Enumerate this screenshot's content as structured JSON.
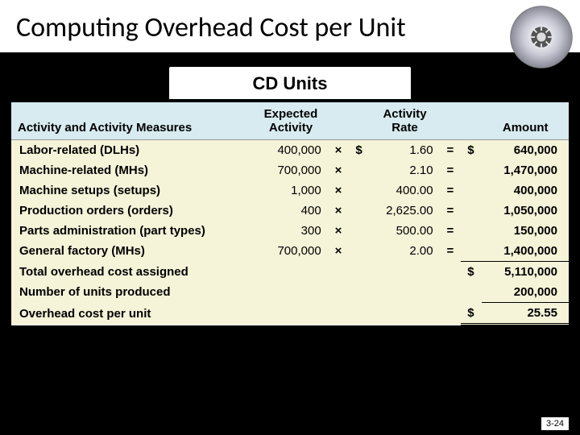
{
  "title": "Computing Overhead Cost per Unit",
  "subtitle": "CD Units",
  "footer": "3-24",
  "headers": {
    "col1": "Activity and Activity Measures",
    "col2a": "Expected",
    "col2b": "Activity",
    "col3a": "Activity",
    "col3b": "Rate",
    "col4": "Amount"
  },
  "rows": [
    {
      "label": "Labor-related (DLHs)",
      "expected": "400,000",
      "op1": "×",
      "cur1": "$",
      "rate": "1.60",
      "op2": "=",
      "cur2": "$",
      "amount": "640,000"
    },
    {
      "label": "Machine-related (MHs)",
      "expected": "700,000",
      "op1": "×",
      "cur1": "",
      "rate": "2.10",
      "op2": "=",
      "cur2": "",
      "amount": "1,470,000"
    },
    {
      "label": "Machine setups (setups)",
      "expected": "1,000",
      "op1": "×",
      "cur1": "",
      "rate": "400.00",
      "op2": "=",
      "cur2": "",
      "amount": "400,000"
    },
    {
      "label": "Production orders (orders)",
      "expected": "400",
      "op1": "×",
      "cur1": "",
      "rate": "2,625.00",
      "op2": "=",
      "cur2": "",
      "amount": "1,050,000"
    },
    {
      "label": "Parts administration (part types)",
      "expected": "300",
      "op1": "×",
      "cur1": "",
      "rate": "500.00",
      "op2": "=",
      "cur2": "",
      "amount": "150,000"
    },
    {
      "label": "General factory (MHs)",
      "expected": "700,000",
      "op1": "×",
      "cur1": "",
      "rate": "2.00",
      "op2": "=",
      "cur2": "",
      "amount": "1,400,000"
    }
  ],
  "totals": {
    "total_label": "Total overhead cost assigned",
    "total_cur": "$",
    "total_amount": "5,110,000",
    "units_label": "Number of units produced",
    "units_amount": "200,000",
    "perunit_label": "Overhead cost per unit",
    "perunit_cur": "$",
    "perunit_amount": "25.55"
  },
  "colors": {
    "header_bg": "#d7ebf0",
    "body_bg": "#f5f3d8",
    "page_bg": "#000000"
  }
}
